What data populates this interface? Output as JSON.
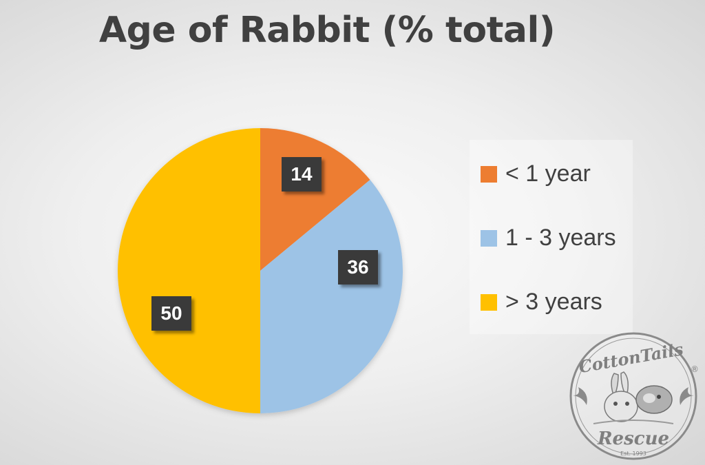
{
  "chart_data": {
    "type": "pie",
    "title": "Age of Rabbit (% total)",
    "categories": [
      "< 1 year",
      "1 - 3 years",
      "> 3 years"
    ],
    "values": [
      14,
      36,
      50
    ],
    "colors": [
      "#ED7D31",
      "#9DC3E6",
      "#FFC000"
    ],
    "legend_position": "right",
    "data_labels": [
      "14",
      "36",
      "50"
    ]
  },
  "logo": {
    "name": "CottonTails Rescue logo",
    "text_top": "CottonTails",
    "text_bottom": "Rescue",
    "text_est": "Est. 1993",
    "registered_mark": "®"
  }
}
